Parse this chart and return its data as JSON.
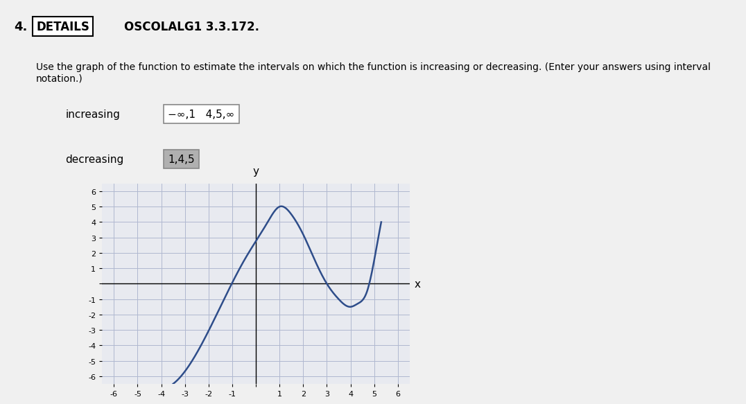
{
  "title_number": "4.",
  "title_label": "DETAILS",
  "title_course": "OSCOLALG1 3.3.172.",
  "question_text": "Use the graph of the function to estimate the intervals on which the function is increasing or decreasing. (Enter your answers using interval notation.)",
  "increasing_label": "increasing",
  "increasing_value": "−∞,1   4,5,∞",
  "decreasing_label": "decreasing",
  "decreasing_value": "1,4,5",
  "graph_xlim": [
    -6.5,
    6.5
  ],
  "graph_ylim": [
    -6.5,
    6.5
  ],
  "graph_xticks": [
    -6,
    -5,
    -4,
    -3,
    -2,
    -1,
    0,
    1,
    2,
    3,
    4,
    5,
    6
  ],
  "graph_yticks": [
    -6,
    -5,
    -4,
    -3,
    -2,
    -1,
    0,
    1,
    2,
    3,
    4,
    5,
    6
  ],
  "curve_color": "#2e4d8a",
  "grid_color": "#b0b8d0",
  "background_color": "#f0f0f0",
  "graph_bg": "#e8eaf0",
  "increasing_box_color": "#ffffff",
  "decreasing_box_color": "#b0b0b0",
  "font_color": "#000000",
  "left_bar_color": "#d4a017"
}
